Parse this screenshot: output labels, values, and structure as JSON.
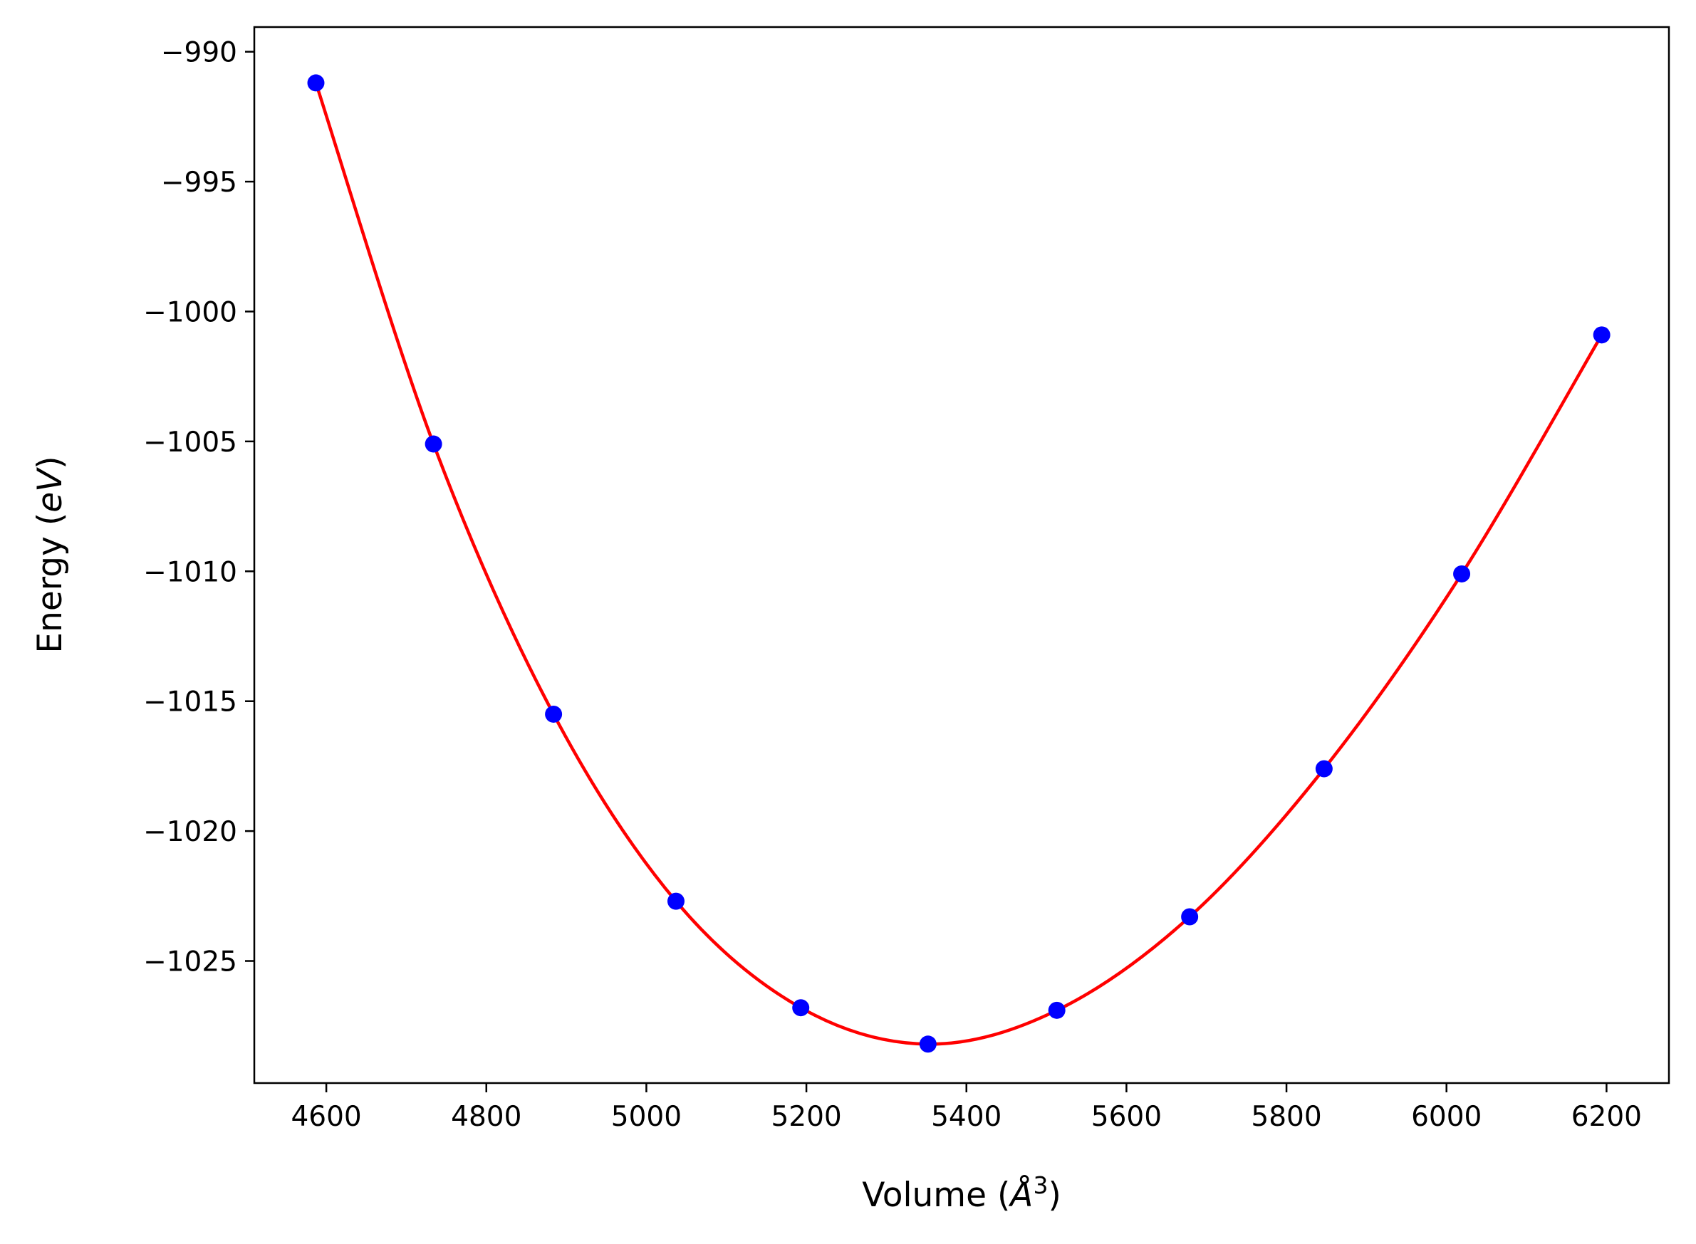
{
  "chart_data": {
    "type": "line",
    "title": "",
    "xlabel": {
      "prefix": "Volume (",
      "symbol": "Å",
      "sup": "3",
      "suffix": ")"
    },
    "ylabel": {
      "prefix": "Energy (",
      "symbol": "eV",
      "suffix": ")"
    },
    "xlim": [
      4510,
      6278
    ],
    "ylim": [
      -1029.7,
      -989.05
    ],
    "xticks": [
      4600,
      4800,
      5000,
      5200,
      5400,
      5600,
      5800,
      6000,
      6200
    ],
    "yticks": [
      -990,
      -995,
      -1000,
      -1005,
      -1010,
      -1015,
      -1020,
      -1025
    ],
    "xtick_labels": [
      "4600",
      "4800",
      "5000",
      "5200",
      "5400",
      "5600",
      "5800",
      "6000",
      "6200"
    ],
    "ytick_labels": [
      "−990",
      "−995",
      "−1000",
      "−1005",
      "−1010",
      "−1015",
      "−1020",
      "−1025"
    ],
    "grid": false,
    "series": [
      {
        "kind": "scatter",
        "color": "#0000ff",
        "x": [
          4587,
          4734,
          4884,
          5037,
          5193,
          5352,
          5513,
          5679,
          5847,
          6019,
          6194
        ],
        "y": [
          -991.2,
          -1005.1,
          -1015.5,
          -1022.7,
          -1026.8,
          -1028.2,
          -1026.9,
          -1023.3,
          -1017.6,
          -1010.1,
          -1000.9
        ]
      },
      {
        "kind": "line",
        "color": "#ff0000",
        "fit": "smooth curve through data points"
      }
    ]
  }
}
